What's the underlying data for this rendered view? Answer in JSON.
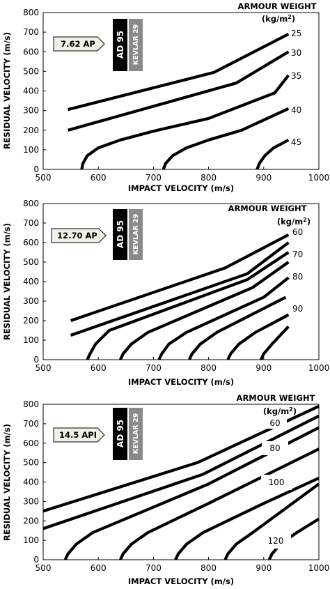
{
  "axis_labels": {
    "x": "IMPACT VELOCITY (m/s)",
    "y": "RESIDUAL VELOCITY (m/s)"
  },
  "legend_title_line1": "ARMOUR WEIGHT",
  "legend_title_line2_prefix": "(kg/m",
  "legend_title_line2_sup": "2",
  "legend_title_line2_suffix": ")",
  "armour_layers": [
    "AD 95",
    "KEVLAR 29"
  ],
  "colors": {
    "curve": "#000000",
    "panel_label_bg": "#f0f0e6",
    "ceramic": "#000000",
    "kevlar": "#8a8a8a"
  },
  "chart_data": [
    {
      "type": "line",
      "ammunition": "7.62 AP",
      "xlim": [
        500,
        1000
      ],
      "ylim": [
        0,
        800
      ],
      "x_ticks": [
        500,
        600,
        700,
        800,
        900,
        1000
      ],
      "y_ticks": [
        0,
        100,
        200,
        300,
        400,
        500,
        600,
        700,
        800
      ],
      "grid": false,
      "series": [
        {
          "name": "25",
          "points": [
            [
              545,
              305
            ],
            [
              810,
              495
            ],
            [
              945,
              690
            ]
          ]
        },
        {
          "name": "30",
          "points": [
            [
              545,
              200
            ],
            [
              850,
              440
            ],
            [
              945,
              600
            ]
          ]
        },
        {
          "name": "35",
          "points": [
            [
              570,
              0
            ],
            [
              572,
              30
            ],
            [
              580,
              70
            ],
            [
              600,
              110
            ],
            [
              640,
              150
            ],
            [
              700,
              195
            ],
            [
              800,
              260
            ],
            [
              920,
              390
            ],
            [
              945,
              480
            ]
          ]
        },
        {
          "name": "40",
          "points": [
            [
              718,
              0
            ],
            [
              722,
              30
            ],
            [
              735,
              70
            ],
            [
              760,
              110
            ],
            [
              800,
              150
            ],
            [
              860,
              200
            ],
            [
              945,
              310
            ]
          ]
        },
        {
          "name": "45",
          "points": [
            [
              888,
              0
            ],
            [
              892,
              30
            ],
            [
              902,
              70
            ],
            [
              918,
              110
            ],
            [
              945,
              150
            ]
          ]
        }
      ],
      "weight_labels": [
        "25",
        "30",
        "35",
        "40",
        "45"
      ]
    },
    {
      "type": "line",
      "ammunition": "12.70 AP",
      "xlim": [
        500,
        1000
      ],
      "ylim": [
        0,
        800
      ],
      "x_ticks": [
        500,
        600,
        700,
        800,
        900,
        1000
      ],
      "y_ticks": [
        0,
        100,
        200,
        300,
        400,
        500,
        600,
        700,
        800
      ],
      "grid": false,
      "series": [
        {
          "name": "",
          "points": [
            [
              550,
              200
            ],
            [
              830,
              470
            ],
            [
              945,
              640
            ]
          ]
        },
        {
          "name": "",
          "points": [
            [
              550,
              125
            ],
            [
              870,
              440
            ],
            [
              945,
              600
            ]
          ]
        },
        {
          "name": "",
          "points": [
            [
              580,
              0
            ],
            [
              585,
              30
            ],
            [
              595,
              80
            ],
            [
              620,
              150
            ],
            [
              870,
              410
            ],
            [
              945,
              550
            ]
          ]
        },
        {
          "name": "",
          "points": [
            [
              640,
              0
            ],
            [
              645,
              30
            ],
            [
              660,
              80
            ],
            [
              690,
              140
            ],
            [
              880,
              370
            ],
            [
              945,
              500
            ]
          ]
        },
        {
          "name": "",
          "points": [
            [
              710,
              0
            ],
            [
              715,
              30
            ],
            [
              728,
              80
            ],
            [
              760,
              140
            ],
            [
              900,
              320
            ],
            [
              945,
              420
            ]
          ]
        },
        {
          "name": "",
          "points": [
            [
              765,
              0
            ],
            [
              770,
              30
            ],
            [
              785,
              80
            ],
            [
              815,
              140
            ],
            [
              940,
              320
            ]
          ]
        },
        {
          "name": "",
          "points": [
            [
              835,
              0
            ],
            [
              840,
              30
            ],
            [
              855,
              80
            ],
            [
              885,
              140
            ],
            [
              945,
              230
            ]
          ]
        },
        {
          "name": "",
          "points": [
            [
              895,
              0
            ],
            [
              900,
              30
            ],
            [
              915,
              80
            ],
            [
              945,
              170
            ]
          ]
        }
      ],
      "weight_labels": [
        "60",
        "70",
        "80",
        "90"
      ]
    },
    {
      "type": "line",
      "ammunition": "14.5 API",
      "xlim": [
        500,
        1000
      ],
      "ylim": [
        0,
        800
      ],
      "x_ticks": [
        500,
        600,
        700,
        800,
        900,
        1000
      ],
      "y_ticks": [
        0,
        100,
        200,
        300,
        400,
        500,
        600,
        700,
        800
      ],
      "grid": false,
      "series": [
        {
          "name": "",
          "points": [
            [
              500,
              250
            ],
            [
              780,
              500
            ],
            [
              1000,
              790
            ]
          ]
        },
        {
          "name": "",
          "points": [
            [
              500,
              160
            ],
            [
              790,
              440
            ],
            [
              1000,
              740
            ]
          ]
        },
        {
          "name": "",
          "points": [
            [
              540,
              0
            ],
            [
              545,
              30
            ],
            [
              560,
              80
            ],
            [
              590,
              140
            ],
            [
              800,
              390
            ],
            [
              1000,
              680
            ]
          ]
        },
        {
          "name": "",
          "points": [
            [
              640,
              0
            ],
            [
              645,
              30
            ],
            [
              660,
              80
            ],
            [
              690,
              140
            ],
            [
              800,
              290
            ],
            [
              1000,
              570
            ]
          ]
        },
        {
          "name": "",
          "points": [
            [
              740,
              0
            ],
            [
              745,
              30
            ],
            [
              760,
              80
            ],
            [
              790,
              140
            ],
            [
              900,
              290
            ],
            [
              1000,
              420
            ]
          ]
        },
        {
          "name": "",
          "points": [
            [
              830,
              0
            ],
            [
              835,
              30
            ],
            [
              850,
              80
            ],
            [
              880,
              140
            ],
            [
              1000,
              390
            ]
          ]
        },
        {
          "name": "",
          "points": [
            [
              910,
              0
            ],
            [
              915,
              30
            ],
            [
              930,
              80
            ],
            [
              960,
              140
            ],
            [
              1000,
              210
            ]
          ]
        }
      ],
      "weight_labels": [
        "60",
        "80",
        "100",
        "120"
      ]
    }
  ]
}
